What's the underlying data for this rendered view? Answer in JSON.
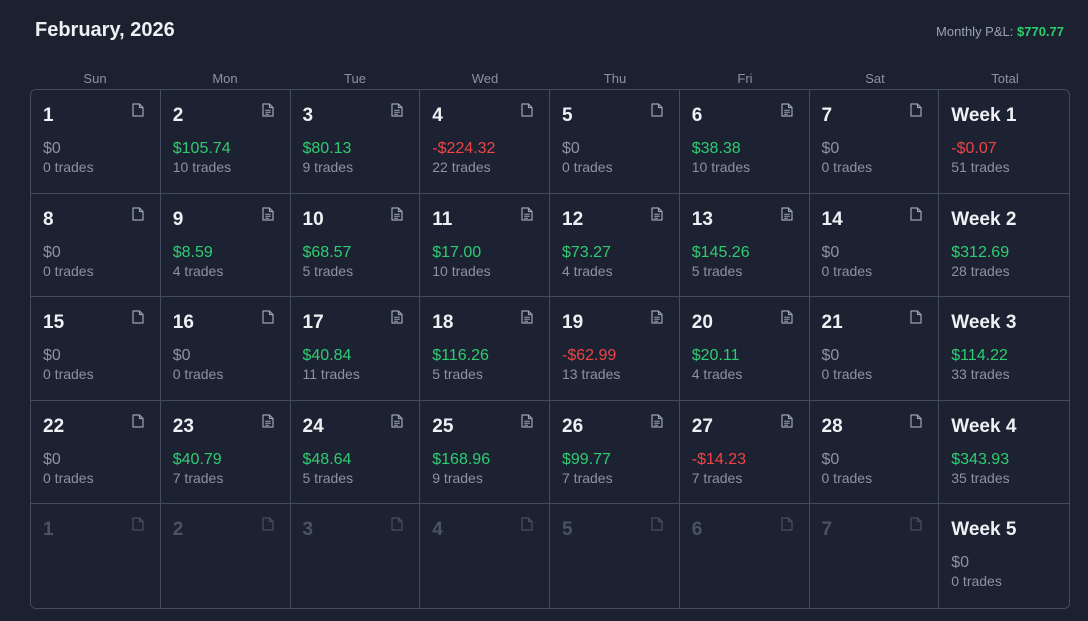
{
  "header": {
    "title": "February, 2026",
    "monthly_label": "Monthly P&L:",
    "monthly_value": "$770.77"
  },
  "weekdays": [
    "Sun",
    "Mon",
    "Tue",
    "Wed",
    "Thu",
    "Fri",
    "Sat",
    "Total"
  ],
  "colors": {
    "positive": "#2ecc71",
    "negative": "#ef4444",
    "neutral": "#8a92a4"
  },
  "weeks": [
    {
      "days": [
        {
          "day": "1",
          "pnl": "$0",
          "trades": "0 trades",
          "icon": "blank-note-icon"
        },
        {
          "day": "2",
          "pnl": "$105.74",
          "trades": "10 trades",
          "icon": "note-icon"
        },
        {
          "day": "3",
          "pnl": "$80.13",
          "trades": "9 trades",
          "icon": "note-icon"
        },
        {
          "day": "4",
          "pnl": "-$224.32",
          "trades": "22 trades",
          "icon": "blank-note-icon"
        },
        {
          "day": "5",
          "pnl": "$0",
          "trades": "0 trades",
          "icon": "blank-note-icon"
        },
        {
          "day": "6",
          "pnl": "$38.38",
          "trades": "10 trades",
          "icon": "note-icon"
        },
        {
          "day": "7",
          "pnl": "$0",
          "trades": "0 trades",
          "icon": "blank-note-icon"
        }
      ],
      "total": {
        "label": "Week 1",
        "pnl": "-$0.07",
        "trades": "51 trades"
      }
    },
    {
      "days": [
        {
          "day": "8",
          "pnl": "$0",
          "trades": "0 trades",
          "icon": "blank-note-icon"
        },
        {
          "day": "9",
          "pnl": "$8.59",
          "trades": "4 trades",
          "icon": "note-icon"
        },
        {
          "day": "10",
          "pnl": "$68.57",
          "trades": "5 trades",
          "icon": "note-icon"
        },
        {
          "day": "11",
          "pnl": "$17.00",
          "trades": "10 trades",
          "icon": "note-icon"
        },
        {
          "day": "12",
          "pnl": "$73.27",
          "trades": "4 trades",
          "icon": "note-icon"
        },
        {
          "day": "13",
          "pnl": "$145.26",
          "trades": "5 trades",
          "icon": "note-icon"
        },
        {
          "day": "14",
          "pnl": "$0",
          "trades": "0 trades",
          "icon": "blank-note-icon"
        }
      ],
      "total": {
        "label": "Week 2",
        "pnl": "$312.69",
        "trades": "28 trades"
      }
    },
    {
      "days": [
        {
          "day": "15",
          "pnl": "$0",
          "trades": "0 trades",
          "icon": "blank-note-icon"
        },
        {
          "day": "16",
          "pnl": "$0",
          "trades": "0 trades",
          "icon": "blank-note-icon"
        },
        {
          "day": "17",
          "pnl": "$40.84",
          "trades": "11 trades",
          "icon": "note-icon"
        },
        {
          "day": "18",
          "pnl": "$116.26",
          "trades": "5 trades",
          "icon": "note-icon"
        },
        {
          "day": "19",
          "pnl": "-$62.99",
          "trades": "13 trades",
          "icon": "note-icon"
        },
        {
          "day": "20",
          "pnl": "$20.11",
          "trades": "4 trades",
          "icon": "note-icon"
        },
        {
          "day": "21",
          "pnl": "$0",
          "trades": "0 trades",
          "icon": "blank-note-icon"
        }
      ],
      "total": {
        "label": "Week 3",
        "pnl": "$114.22",
        "trades": "33 trades"
      }
    },
    {
      "days": [
        {
          "day": "22",
          "pnl": "$0",
          "trades": "0 trades",
          "icon": "blank-note-icon"
        },
        {
          "day": "23",
          "pnl": "$40.79",
          "trades": "7 trades",
          "icon": "note-icon"
        },
        {
          "day": "24",
          "pnl": "$48.64",
          "trades": "5 trades",
          "icon": "note-icon"
        },
        {
          "day": "25",
          "pnl": "$168.96",
          "trades": "9 trades",
          "icon": "note-icon"
        },
        {
          "day": "26",
          "pnl": "$99.77",
          "trades": "7 trades",
          "icon": "note-icon"
        },
        {
          "day": "27",
          "pnl": "-$14.23",
          "trades": "7 trades",
          "icon": "note-icon"
        },
        {
          "day": "28",
          "pnl": "$0",
          "trades": "0 trades",
          "icon": "blank-note-icon"
        }
      ],
      "total": {
        "label": "Week 4",
        "pnl": "$343.93",
        "trades": "35 trades"
      }
    },
    {
      "days": [
        {
          "day": "1",
          "pnl": "",
          "trades": "",
          "icon": "blank-note-icon",
          "muted": true
        },
        {
          "day": "2",
          "pnl": "",
          "trades": "",
          "icon": "blank-note-icon",
          "muted": true
        },
        {
          "day": "3",
          "pnl": "",
          "trades": "",
          "icon": "blank-note-icon",
          "muted": true
        },
        {
          "day": "4",
          "pnl": "",
          "trades": "",
          "icon": "blank-note-icon",
          "muted": true
        },
        {
          "day": "5",
          "pnl": "",
          "trades": "",
          "icon": "blank-note-icon",
          "muted": true
        },
        {
          "day": "6",
          "pnl": "",
          "trades": "",
          "icon": "blank-note-icon",
          "muted": true
        },
        {
          "day": "7",
          "pnl": "",
          "trades": "",
          "icon": "blank-note-icon",
          "muted": true
        }
      ],
      "total": {
        "label": "Week 5",
        "pnl": "$0",
        "trades": "0 trades"
      }
    }
  ]
}
